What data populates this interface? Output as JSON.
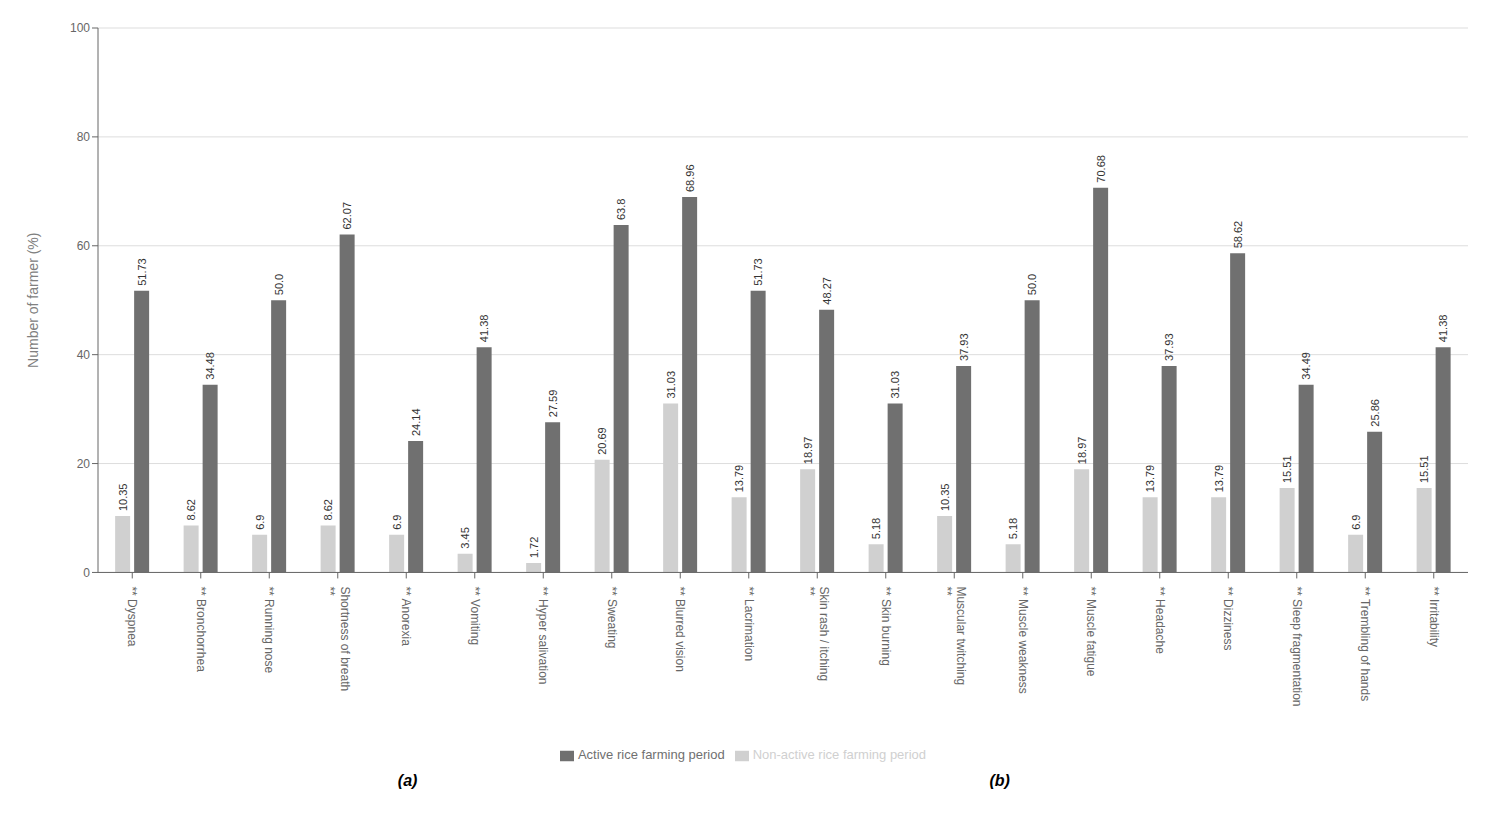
{
  "chart_data": {
    "type": "bar",
    "categories": [
      "** Dyspnea",
      "** Bronchorrhea",
      "** Running nose",
      "Shortness of breath\n**",
      "** Anorexia",
      "** Vomiting",
      "** Hyper salivation",
      "** Sweating",
      "** Blurred vision",
      "** Lacrimation",
      "Skin rash / itching\n**",
      "** Skin burning",
      "Muscular twitching\n**",
      "** Muscle weakness",
      "** Muscle fatigue",
      "** Headache",
      "** Dizziness",
      "** Sleep fragmentation",
      "** Trembling of hands",
      "** Irritability"
    ],
    "series": [
      {
        "name": "Non-active rice farming period",
        "color": "#d0d0d0",
        "values": [
          10.35,
          8.62,
          6.9,
          8.62,
          6.9,
          3.45,
          1.72,
          20.69,
          31.03,
          13.79,
          18.97,
          5.18,
          10.35,
          5.18,
          18.97,
          13.79,
          13.79,
          15.51,
          6.9,
          15.51
        ],
        "value_labels": [
          "10.35",
          "8.62",
          "6.9",
          "8.62",
          "6.9",
          "3.45",
          "1.72",
          "20.69",
          "31.03",
          "13.79",
          "18.97",
          "5.18",
          "10.35",
          "5.18",
          "18.97",
          "13.79",
          "13.79",
          "15.51",
          "6.9",
          "15.51"
        ]
      },
      {
        "name": "Active rice farming period",
        "color": "#707070",
        "values": [
          51.73,
          34.48,
          50.0,
          62.07,
          24.14,
          41.38,
          27.59,
          63.8,
          68.96,
          51.73,
          48.27,
          31.03,
          37.93,
          50.0,
          70.68,
          37.93,
          58.62,
          34.49,
          25.86,
          41.38
        ],
        "value_labels": [
          "51.73",
          "34.48",
          "50.0",
          "62.07",
          "24.14",
          "41.38",
          "27.59",
          "63.8",
          "68.96",
          "51.73",
          "48.27",
          "31.03",
          "37.93",
          "50.0",
          "70.68",
          "37.93",
          "58.62",
          "34.49",
          "25.86",
          "41.38"
        ]
      }
    ],
    "ylabel": "Number of farmer (%)",
    "ylim": [
      0,
      100
    ],
    "yticks": [
      0,
      20,
      40,
      60,
      80,
      100
    ],
    "grid": true,
    "legend": "bottom",
    "data_labels": true,
    "annotations": [
      "(a)",
      "(b)"
    ]
  }
}
